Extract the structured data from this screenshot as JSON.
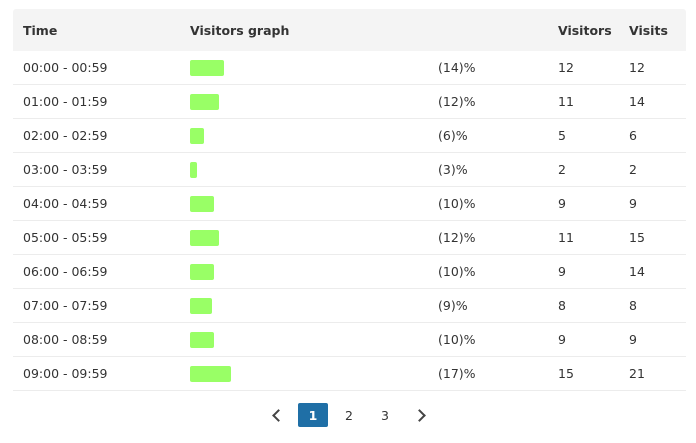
{
  "table": {
    "headers": {
      "time": "Time",
      "graph": "Visitors graph",
      "visitors": "Visitors",
      "visits": "Visits"
    },
    "bar_color": "#99ff66",
    "rows": [
      {
        "time": "00:00 - 00:59",
        "share": 14,
        "pct": "(14)%",
        "visitors": "12",
        "visits": "12"
      },
      {
        "time": "01:00 - 01:59",
        "share": 12,
        "pct": "(12)%",
        "visitors": "11",
        "visits": "14"
      },
      {
        "time": "02:00 - 02:59",
        "share": 6,
        "pct": "(6)%",
        "visitors": "5",
        "visits": "6"
      },
      {
        "time": "03:00 - 03:59",
        "share": 3,
        "pct": "(3)%",
        "visitors": "2",
        "visits": "2"
      },
      {
        "time": "04:00 - 04:59",
        "share": 10,
        "pct": "(10)%",
        "visitors": "9",
        "visits": "9"
      },
      {
        "time": "05:00 - 05:59",
        "share": 12,
        "pct": "(12)%",
        "visitors": "11",
        "visits": "15"
      },
      {
        "time": "06:00 - 06:59",
        "share": 10,
        "pct": "(10)%",
        "visitors": "9",
        "visits": "14"
      },
      {
        "time": "07:00 - 07:59",
        "share": 9,
        "pct": "(9)%",
        "visitors": "8",
        "visits": "8"
      },
      {
        "time": "08:00 - 08:59",
        "share": 10,
        "pct": "(10)%",
        "visitors": "9",
        "visits": "9"
      },
      {
        "time": "09:00 - 09:59",
        "share": 17,
        "pct": "(17)%",
        "visitors": "15",
        "visits": "21"
      }
    ]
  },
  "pagination": {
    "pages": [
      "1",
      "2",
      "3"
    ],
    "current": "1",
    "prev_icon": "chevron-left-icon",
    "next_icon": "chevron-right-icon",
    "active_color": "#1f6fa6"
  }
}
